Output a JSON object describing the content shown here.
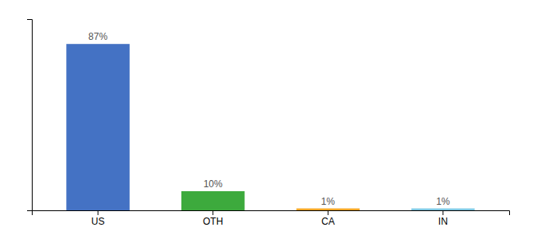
{
  "chart_data": {
    "type": "bar",
    "categories": [
      "US",
      "OTH",
      "CA",
      "IN"
    ],
    "values": [
      87,
      10,
      1,
      1
    ],
    "value_labels": [
      "87%",
      "10%",
      "1%",
      "1%"
    ],
    "colors": [
      "#4472c4",
      "#3daa3d",
      "#f5a623",
      "#7ec8e3"
    ],
    "ylim": [
      0,
      100
    ],
    "data_labels": true,
    "tick_labels": "x",
    "grid": false
  }
}
